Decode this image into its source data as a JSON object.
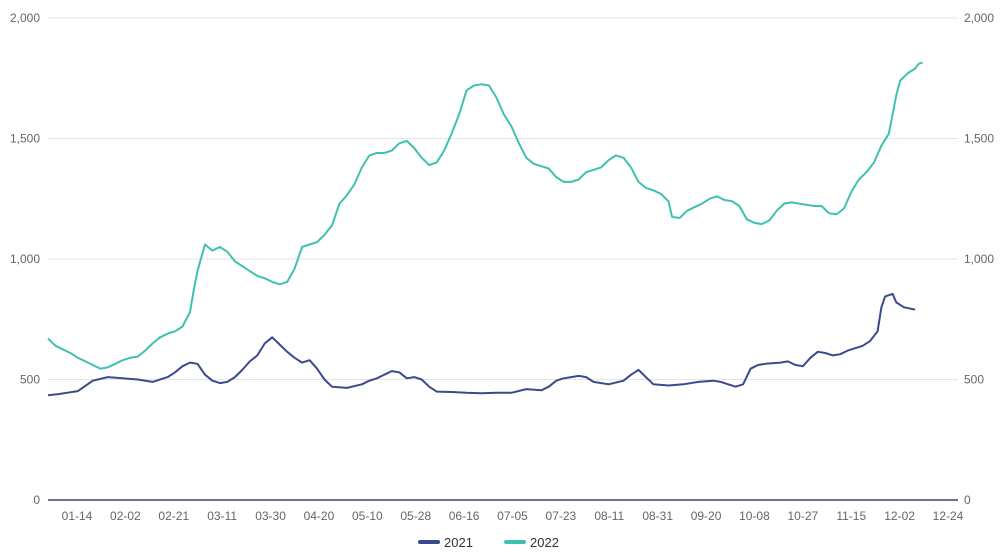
{
  "chart_data": {
    "type": "line",
    "title": "",
    "xlabel": "",
    "ylabel": "",
    "ylim": [
      0,
      2000
    ],
    "y_ticks": [
      "0",
      "500",
      "1,000",
      "1,500",
      "2,000"
    ],
    "y_tick_values": [
      0,
      500,
      1000,
      1500,
      2000
    ],
    "x_ticks": [
      "01-14",
      "02-02",
      "02-21",
      "03-11",
      "03-30",
      "04-20",
      "05-10",
      "05-28",
      "06-16",
      "07-05",
      "07-23",
      "08-11",
      "08-31",
      "09-20",
      "10-08",
      "10-27",
      "11-15",
      "12-02",
      "12-24"
    ],
    "x_tick_index": [
      3,
      13,
      23,
      33,
      43,
      53,
      63,
      73,
      83,
      93,
      103,
      113,
      123,
      133,
      143,
      153,
      163,
      173,
      183
    ],
    "x_count": 185,
    "legend_position": "bottom",
    "grid": true,
    "series": [
      {
        "name": "2021",
        "color": "#3b4a8c",
        "points": [
          [
            0,
            435
          ],
          [
            3,
            440
          ],
          [
            5,
            445
          ],
          [
            8,
            452
          ],
          [
            12,
            495
          ],
          [
            16,
            510
          ],
          [
            20,
            505
          ],
          [
            24,
            500
          ],
          [
            28,
            490
          ],
          [
            32,
            510
          ],
          [
            34,
            530
          ],
          [
            36,
            555
          ],
          [
            38,
            570
          ],
          [
            40,
            565
          ],
          [
            42,
            520
          ],
          [
            44,
            495
          ],
          [
            46,
            485
          ],
          [
            48,
            490
          ],
          [
            50,
            510
          ],
          [
            52,
            540
          ],
          [
            54,
            575
          ],
          [
            56,
            600
          ],
          [
            58,
            650
          ],
          [
            60,
            675
          ],
          [
            62,
            645
          ],
          [
            64,
            615
          ],
          [
            66,
            590
          ],
          [
            68,
            570
          ],
          [
            70,
            580
          ],
          [
            72,
            545
          ],
          [
            74,
            500
          ],
          [
            76,
            470
          ],
          [
            80,
            465
          ],
          [
            84,
            480
          ],
          [
            86,
            495
          ],
          [
            88,
            505
          ],
          [
            90,
            520
          ],
          [
            92,
            535
          ],
          [
            94,
            530
          ],
          [
            96,
            505
          ],
          [
            98,
            510
          ],
          [
            100,
            500
          ],
          [
            102,
            470
          ],
          [
            104,
            450
          ],
          [
            108,
            448
          ],
          [
            112,
            445
          ],
          [
            116,
            443
          ],
          [
            120,
            445
          ],
          [
            124,
            445
          ],
          [
            128,
            460
          ],
          [
            132,
            455
          ],
          [
            134,
            470
          ],
          [
            136,
            495
          ],
          [
            138,
            505
          ],
          [
            140,
            510
          ],
          [
            142,
            515
          ],
          [
            144,
            510
          ],
          [
            146,
            490
          ],
          [
            150,
            480
          ],
          [
            154,
            495
          ],
          [
            156,
            520
          ],
          [
            158,
            540
          ],
          [
            160,
            510
          ],
          [
            162,
            480
          ],
          [
            166,
            475
          ],
          [
            170,
            480
          ],
          [
            174,
            490
          ],
          [
            178,
            495
          ],
          [
            180,
            490
          ],
          [
            184,
            470
          ],
          [
            186,
            480
          ],
          [
            188,
            545
          ],
          [
            190,
            560
          ],
          [
            192,
            565
          ],
          [
            196,
            570
          ],
          [
            198,
            575
          ],
          [
            200,
            560
          ],
          [
            202,
            555
          ],
          [
            204,
            590
          ],
          [
            206,
            615
          ],
          [
            208,
            610
          ],
          [
            210,
            600
          ],
          [
            212,
            605
          ],
          [
            214,
            620
          ],
          [
            216,
            630
          ],
          [
            218,
            640
          ],
          [
            220,
            660
          ],
          [
            222,
            700
          ],
          [
            223,
            800
          ],
          [
            224,
            845
          ],
          [
            226,
            855
          ],
          [
            227,
            820
          ],
          [
            229,
            800
          ],
          [
            232,
            790
          ]
        ]
      },
      {
        "name": "2022",
        "color": "#3ec1b0",
        "points": [
          [
            0,
            670
          ],
          [
            2,
            640
          ],
          [
            4,
            625
          ],
          [
            6,
            610
          ],
          [
            8,
            590
          ],
          [
            10,
            575
          ],
          [
            12,
            560
          ],
          [
            14,
            545
          ],
          [
            16,
            550
          ],
          [
            18,
            565
          ],
          [
            20,
            580
          ],
          [
            22,
            590
          ],
          [
            24,
            595
          ],
          [
            26,
            620
          ],
          [
            28,
            650
          ],
          [
            30,
            675
          ],
          [
            32,
            690
          ],
          [
            34,
            700
          ],
          [
            36,
            720
          ],
          [
            38,
            780
          ],
          [
            39,
            870
          ],
          [
            40,
            950
          ],
          [
            41,
            1005
          ],
          [
            42,
            1060
          ],
          [
            44,
            1035
          ],
          [
            46,
            1050
          ],
          [
            48,
            1030
          ],
          [
            50,
            990
          ],
          [
            52,
            970
          ],
          [
            54,
            950
          ],
          [
            56,
            930
          ],
          [
            58,
            920
          ],
          [
            60,
            905
          ],
          [
            62,
            895
          ],
          [
            64,
            905
          ],
          [
            66,
            960
          ],
          [
            68,
            1050
          ],
          [
            70,
            1060
          ],
          [
            72,
            1070
          ],
          [
            74,
            1100
          ],
          [
            76,
            1140
          ],
          [
            78,
            1230
          ],
          [
            80,
            1265
          ],
          [
            82,
            1310
          ],
          [
            84,
            1380
          ],
          [
            86,
            1430
          ],
          [
            88,
            1440
          ],
          [
            90,
            1440
          ],
          [
            92,
            1450
          ],
          [
            94,
            1480
          ],
          [
            96,
            1490
          ],
          [
            98,
            1460
          ],
          [
            100,
            1420
          ],
          [
            102,
            1390
          ],
          [
            104,
            1400
          ],
          [
            106,
            1450
          ],
          [
            108,
            1520
          ],
          [
            110,
            1600
          ],
          [
            112,
            1700
          ],
          [
            114,
            1720
          ],
          [
            116,
            1725
          ],
          [
            118,
            1720
          ],
          [
            120,
            1670
          ],
          [
            122,
            1600
          ],
          [
            124,
            1550
          ],
          [
            126,
            1480
          ],
          [
            128,
            1420
          ],
          [
            130,
            1395
          ],
          [
            132,
            1385
          ],
          [
            134,
            1375
          ],
          [
            136,
            1340
          ],
          [
            138,
            1320
          ],
          [
            140,
            1320
          ],
          [
            142,
            1330
          ],
          [
            144,
            1360
          ],
          [
            146,
            1370
          ],
          [
            148,
            1380
          ],
          [
            150,
            1410
          ],
          [
            152,
            1430
          ],
          [
            154,
            1420
          ],
          [
            156,
            1380
          ],
          [
            158,
            1320
          ],
          [
            160,
            1295
          ],
          [
            162,
            1285
          ],
          [
            164,
            1270
          ],
          [
            166,
            1240
          ],
          [
            167,
            1175
          ],
          [
            169,
            1170
          ],
          [
            171,
            1200
          ],
          [
            173,
            1215
          ],
          [
            175,
            1230
          ],
          [
            177,
            1250
          ],
          [
            179,
            1260
          ],
          [
            181,
            1245
          ],
          [
            183,
            1240
          ],
          [
            185,
            1220
          ],
          [
            187,
            1165
          ],
          [
            189,
            1150
          ],
          [
            191,
            1145
          ],
          [
            193,
            1160
          ],
          [
            195,
            1200
          ],
          [
            197,
            1230
          ],
          [
            199,
            1235
          ],
          [
            201,
            1230
          ],
          [
            203,
            1225
          ],
          [
            205,
            1220
          ],
          [
            207,
            1220
          ],
          [
            209,
            1190
          ],
          [
            211,
            1185
          ],
          [
            213,
            1210
          ],
          [
            215,
            1280
          ],
          [
            217,
            1330
          ],
          [
            219,
            1360
          ],
          [
            221,
            1400
          ],
          [
            223,
            1470
          ],
          [
            225,
            1520
          ],
          [
            226,
            1600
          ],
          [
            227,
            1680
          ],
          [
            228,
            1740
          ],
          [
            230,
            1770
          ],
          [
            232,
            1790
          ],
          [
            233,
            1810
          ],
          [
            234,
            1815
          ]
        ]
      }
    ]
  }
}
